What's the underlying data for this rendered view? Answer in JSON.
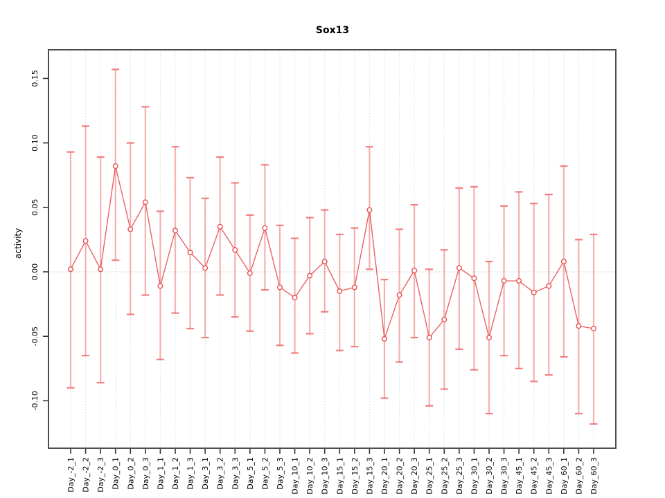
{
  "chart_data": {
    "type": "line",
    "title": "Sox13",
    "xlabel": "",
    "ylabel": "activity",
    "legend": "none",
    "grid": "vertical-dotted-gridlines",
    "zero_line": true,
    "marker": "open-circle",
    "ylim": [
      -0.135,
      0.172
    ],
    "y_ticks": [
      -0.1,
      -0.05,
      0.0,
      0.05,
      0.1,
      0.15
    ],
    "y_tick_labels": [
      "-0.10",
      "-0.05",
      "0.00",
      "0.05",
      "0.10",
      "0.15"
    ],
    "categories": [
      "Day_-2_1",
      "Day_-2_2",
      "Day_-2_3",
      "Day_0_1",
      "Day_0_2",
      "Day_0_3",
      "Day_1_1",
      "Day_1_2",
      "Day_1_3",
      "Day_3_1",
      "Day_3_2",
      "Day_3_3",
      "Day_5_1",
      "Day_5_2",
      "Day_5_3",
      "Day_10_1",
      "Day_10_2",
      "Day_10_3",
      "Day_15_1",
      "Day_15_2",
      "Day_15_3",
      "Day_20_1",
      "Day_20_2",
      "Day_20_3",
      "Day_25_1",
      "Day_25_2",
      "Day_25_3",
      "Day_30_1",
      "Day_30_2",
      "Day_30_3",
      "Day_45_1",
      "Day_45_2",
      "Day_45_3",
      "Day_60_1",
      "Day_60_2",
      "Day_60_3"
    ],
    "series": [
      {
        "name": "activity",
        "values": [
          0.002,
          0.024,
          0.002,
          0.082,
          0.033,
          0.054,
          -0.011,
          0.032,
          0.015,
          0.003,
          0.035,
          0.017,
          -0.001,
          0.034,
          -0.012,
          -0.02,
          -0.003,
          0.008,
          -0.015,
          -0.012,
          0.048,
          -0.052,
          -0.018,
          0.001,
          -0.051,
          -0.037,
          0.003,
          -0.005,
          -0.051,
          -0.007,
          -0.007,
          -0.016,
          -0.011,
          0.008,
          -0.042,
          -0.044
        ]
      }
    ],
    "error_bars": {
      "upper": [
        0.093,
        0.113,
        0.089,
        0.157,
        0.1,
        0.128,
        0.047,
        0.097,
        0.073,
        0.057,
        0.089,
        0.069,
        0.044,
        0.083,
        0.036,
        0.026,
        0.042,
        0.048,
        0.029,
        0.034,
        0.097,
        -0.006,
        0.033,
        0.052,
        0.002,
        0.017,
        0.065,
        0.066,
        0.008,
        0.051,
        0.062,
        0.053,
        0.06,
        0.082,
        0.025,
        0.029
      ],
      "lower": [
        -0.09,
        -0.065,
        -0.086,
        0.009,
        -0.033,
        -0.018,
        -0.068,
        -0.032,
        -0.044,
        -0.051,
        -0.018,
        -0.035,
        -0.046,
        -0.014,
        -0.057,
        -0.063,
        -0.048,
        -0.031,
        -0.061,
        -0.058,
        0.002,
        -0.098,
        -0.07,
        -0.051,
        -0.104,
        -0.091,
        -0.06,
        -0.076,
        -0.11,
        -0.065,
        -0.075,
        -0.085,
        -0.08,
        -0.066,
        -0.11,
        -0.118
      ]
    },
    "colors": {
      "line": "#e85050",
      "point_stroke": "#e85050",
      "point_fill": "#ffffff",
      "error_bar": "#f08080",
      "error_cap": "#ee6a6a",
      "gridline": "#dadada",
      "zero_line": "#c8c8c8",
      "axis_box": "#4d4d4d",
      "tick": "#333333",
      "text": "#000000"
    }
  }
}
